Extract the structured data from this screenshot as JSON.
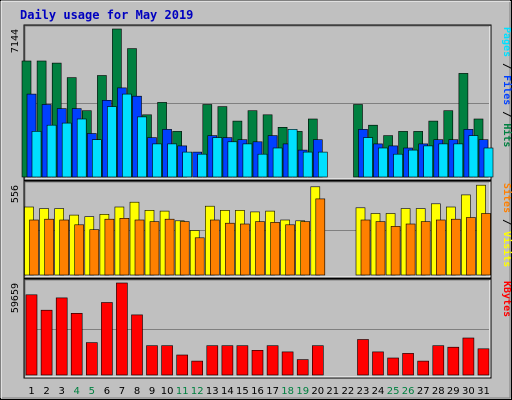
{
  "chart_data": {
    "type": "bar",
    "title": "Daily usage for May 2019",
    "categories": [
      "1",
      "2",
      "3",
      "4",
      "5",
      "6",
      "7",
      "8",
      "9",
      "10",
      "11",
      "12",
      "13",
      "14",
      "15",
      "16",
      "17",
      "18",
      "19",
      "20",
      "21",
      "22",
      "23",
      "24",
      "25",
      "26",
      "27",
      "28",
      "29",
      "30",
      "31"
    ],
    "weekend_days": [
      "4",
      "5",
      "11",
      "12",
      "18",
      "19",
      "25",
      "26"
    ],
    "tick_color_weekday": "#000000",
    "tick_color_weekend": "#008040",
    "panels": [
      {
        "id": "hits-files-pages",
        "max_label": "7144",
        "ymax": 7144,
        "series": [
          {
            "name": "Hits",
            "color": "#008040",
            "values": [
              5600,
              5600,
              5500,
              4800,
              3200,
              4900,
              7144,
              6200,
              3000,
              3600,
              2200,
              null,
              3500,
              3400,
              2700,
              3200,
              3000,
              2400,
              2200,
              2800,
              null,
              null,
              3500,
              2500,
              2000,
              2200,
              2200,
              2700,
              3200,
              5000,
              2800
            ]
          },
          {
            "name": "Files",
            "color": "#0040ff",
            "values": [
              4000,
              3500,
              3300,
              3300,
              2100,
              3700,
              4300,
              3900,
              1900,
              2300,
              1500,
              1200,
              2000,
              1900,
              1800,
              1700,
              2000,
              1600,
              1300,
              1800,
              null,
              null,
              2300,
              1600,
              1500,
              1400,
              1600,
              1800,
              1800,
              2300,
              1800
            ]
          },
          {
            "name": "Pages",
            "color": "#00e0ff",
            "values": [
              2200,
              2500,
              2600,
              2800,
              1800,
              3400,
              4000,
              2900,
              1600,
              1600,
              1200,
              1100,
              1900,
              1700,
              1600,
              1100,
              1400,
              2300,
              1200,
              1200,
              null,
              null,
              1900,
              1400,
              1100,
              1300,
              1500,
              1600,
              1600,
              2000,
              1400
            ]
          }
        ]
      },
      {
        "id": "visits-sites",
        "max_label": "556",
        "ymax": 556,
        "series": [
          {
            "name": "Visits",
            "color": "#ffff00",
            "values": [
              420,
              410,
              410,
              370,
              360,
              375,
              420,
              450,
              400,
              395,
              335,
              275,
              425,
              400,
              400,
              390,
              395,
              340,
              335,
              545,
              null,
              null,
              415,
              380,
              380,
              410,
              410,
              440,
              420,
              495,
              555
            ]
          },
          {
            "name": "Sites",
            "color": "#ff8000",
            "values": [
              340,
              345,
              340,
              310,
              280,
              345,
              350,
              340,
              330,
              345,
              330,
              230,
              340,
              320,
              315,
              330,
              325,
              310,
              330,
              470,
              null,
              null,
              340,
              330,
              300,
              315,
              330,
              340,
              345,
              355,
              380
            ]
          }
        ]
      },
      {
        "id": "kbytes",
        "max_label": "59659",
        "ymax": 59659,
        "series": [
          {
            "name": "KBytes",
            "color": "#ff0000",
            "values": [
              52000,
              42000,
              50000,
              40000,
              21000,
              47000,
              59659,
              39000,
              19000,
              19000,
              13000,
              9000,
              19000,
              19000,
              19000,
              16000,
              19000,
              15000,
              10000,
              19000,
              null,
              null,
              23000,
              15000,
              11000,
              14000,
              9000,
              19000,
              18000,
              24000,
              17000
            ]
          }
        ]
      }
    ],
    "right_labels": [
      {
        "panel": 0,
        "parts": [
          {
            "text": "Pages",
            "color": "#00e0ff"
          },
          {
            "text": " / ",
            "color": "#000000"
          },
          {
            "text": "Files",
            "color": "#0040ff"
          },
          {
            "text": " / ",
            "color": "#000000"
          },
          {
            "text": "Hits",
            "color": "#008040"
          }
        ]
      },
      {
        "panel": 1,
        "parts": [
          {
            "text": "Sites",
            "color": "#ff8000"
          },
          {
            "text": " / ",
            "color": "#000000"
          },
          {
            "text": "Visits",
            "color": "#ffff00"
          }
        ]
      },
      {
        "panel": 2,
        "parts": [
          {
            "text": "KBytes",
            "color": "#ff0000"
          }
        ]
      }
    ],
    "grid": true
  }
}
